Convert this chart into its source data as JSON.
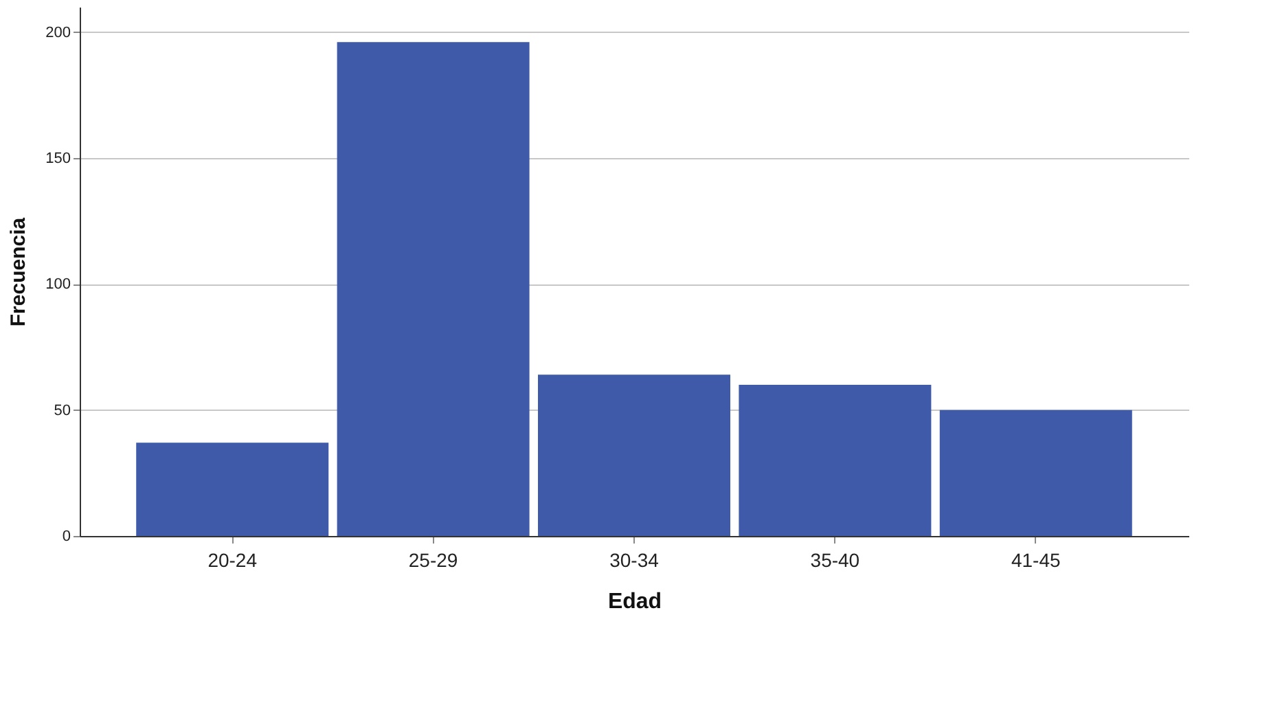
{
  "chart_data": {
    "type": "bar",
    "xlabel": "Edad",
    "ylabel": "Frecuencia",
    "categories": [
      "20-24",
      "25-29",
      "30-34",
      "35-40",
      "41-45"
    ],
    "values": [
      37,
      196,
      64,
      60,
      50
    ],
    "color": "#3f5aa9",
    "ylim": [
      0,
      210
    ],
    "yticks": [
      0,
      50,
      100,
      150,
      200
    ],
    "grid": "y"
  }
}
